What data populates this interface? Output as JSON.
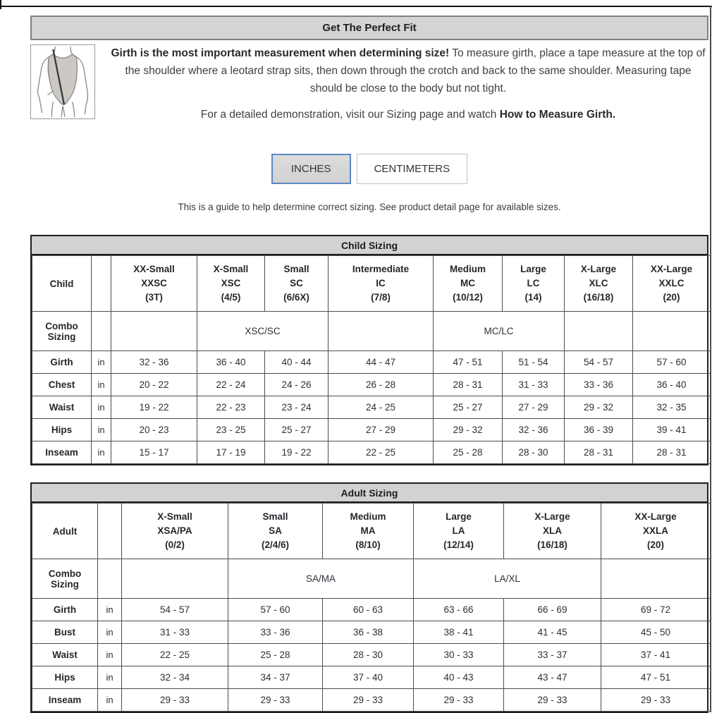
{
  "header": {
    "title": "Get The Perfect Fit"
  },
  "intro": {
    "bold_lead": "Girth is the most important measurement when determining size!",
    "body": " To measure girth, place a tape measure at the top of the shoulder where a leotard strap sits, then down through the crotch and back to the same shoulder. Measuring tape should be close to the body but not tight.",
    "demo_text": "For a detailed demonstration, visit our Sizing page and watch ",
    "demo_bold": "How to Measure Girth."
  },
  "units": {
    "inches_label": "INCHES",
    "centimeters_label": "CENTIMETERS",
    "selected": "INCHES"
  },
  "note": "This is a guide to help determine correct sizing. See product detail page for available sizes.",
  "icons": {
    "leotard": "leotard-girth-measure-illustration"
  },
  "colors": {
    "accent_blue": "#5b87c5",
    "bar_gray": "#d2d2d2",
    "selected_button_bg": "#d6d6d6",
    "table_border": "#1f1f1f"
  },
  "child_table": {
    "name": "child-sizing",
    "title": "Child Sizing",
    "row_label": "Child",
    "combo_label": "Combo Sizing",
    "unit": "in",
    "sizes": [
      {
        "name": "XX-Small",
        "code": "XXSC",
        "range": "(3T)"
      },
      {
        "name": "X-Small",
        "code": "XSC",
        "range": "(4/5)"
      },
      {
        "name": "Small",
        "code": "SC",
        "range": "(6/6X)"
      },
      {
        "name": "Intermediate",
        "code": "IC",
        "range": "(7/8)"
      },
      {
        "name": "Medium",
        "code": "MC",
        "range": "(10/12)"
      },
      {
        "name": "Large",
        "code": "LC",
        "range": "(14)"
      },
      {
        "name": "X-Large",
        "code": "XLC",
        "range": "(16/18)"
      },
      {
        "name": "XX-Large",
        "code": "XXLC",
        "range": "(20)"
      }
    ],
    "combo": [
      {
        "label": "",
        "span": 1
      },
      {
        "label": "XSC/SC",
        "span": 2
      },
      {
        "label": "",
        "span": 1
      },
      {
        "label": "MC/LC",
        "span": 2
      },
      {
        "label": "",
        "span": 1
      },
      {
        "label": "",
        "span": 1
      }
    ],
    "measurements": [
      {
        "label": "Girth",
        "values": [
          "32 - 36",
          "36 - 40",
          "40 - 44",
          "44 - 47",
          "47 - 51",
          "51 - 54",
          "54 - 57",
          "57 - 60"
        ]
      },
      {
        "label": "Chest",
        "values": [
          "20 - 22",
          "22 - 24",
          "24 - 26",
          "26 - 28",
          "28 - 31",
          "31 - 33",
          "33 - 36",
          "36 - 40"
        ]
      },
      {
        "label": "Waist",
        "values": [
          "19 - 22",
          "22 - 23",
          "23 - 24",
          "24 - 25",
          "25 - 27",
          "27 - 29",
          "29 - 32",
          "32 - 35"
        ]
      },
      {
        "label": "Hips",
        "values": [
          "20 - 23",
          "23 - 25",
          "25 - 27",
          "27 - 29",
          "29 - 32",
          "32 - 36",
          "36 - 39",
          "39 - 41"
        ]
      },
      {
        "label": "Inseam",
        "values": [
          "15 - 17",
          "17 - 19",
          "19 - 22",
          "22 - 25",
          "25 - 28",
          "28 - 30",
          "28 - 31",
          "28 - 31"
        ]
      }
    ]
  },
  "adult_table": {
    "name": "adult-sizing",
    "title": "Adult Sizing",
    "row_label": "Adult",
    "combo_label": "Combo Sizing",
    "unit": "in",
    "sizes": [
      {
        "name": "X-Small",
        "code": "XSA/PA",
        "range": "(0/2)"
      },
      {
        "name": "Small",
        "code": "SA",
        "range": "(2/4/6)"
      },
      {
        "name": "Medium",
        "code": "MA",
        "range": "(8/10)"
      },
      {
        "name": "Large",
        "code": "LA",
        "range": "(12/14)"
      },
      {
        "name": "X-Large",
        "code": "XLA",
        "range": "(16/18)"
      },
      {
        "name": "XX-Large",
        "code": "XXLA",
        "range": "(20)"
      }
    ],
    "combo": [
      {
        "label": "",
        "span": 1
      },
      {
        "label": "SA/MA",
        "span": 2
      },
      {
        "label": "LA/XL",
        "span": 2
      },
      {
        "label": "",
        "span": 1
      }
    ],
    "measurements": [
      {
        "label": "Girth",
        "values": [
          "54 - 57",
          "57 - 60",
          "60 - 63",
          "63 - 66",
          "66 - 69",
          "69 - 72"
        ]
      },
      {
        "label": "Bust",
        "values": [
          "31 - 33",
          "33 - 36",
          "36 - 38",
          "38 - 41",
          "41 - 45",
          "45 - 50"
        ]
      },
      {
        "label": "Waist",
        "values": [
          "22 - 25",
          "25 - 28",
          "28 - 30",
          "30 - 33",
          "33 - 37",
          "37 - 41"
        ]
      },
      {
        "label": "Hips",
        "values": [
          "32 - 34",
          "34 - 37",
          "37 - 40",
          "40 - 43",
          "43 - 47",
          "47 - 51"
        ]
      },
      {
        "label": "Inseam",
        "values": [
          "29 - 33",
          "29 - 33",
          "29 - 33",
          "29 - 33",
          "29 - 33",
          "29 - 33"
        ]
      }
    ]
  }
}
